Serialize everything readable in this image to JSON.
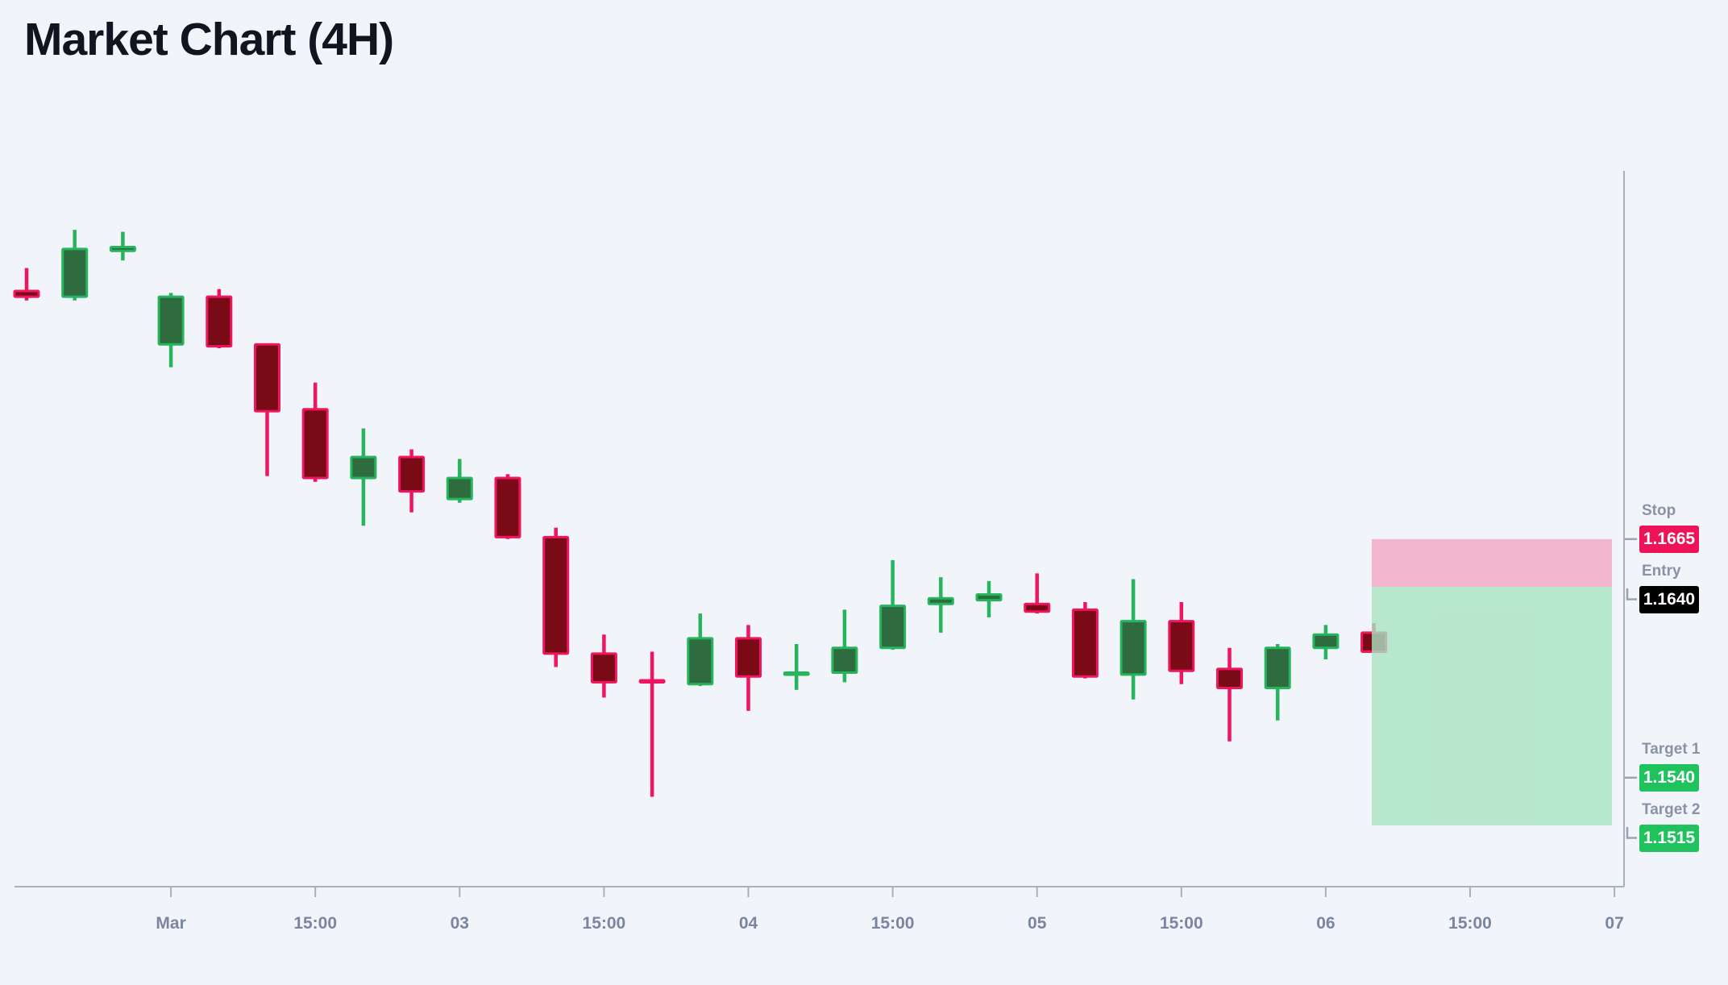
{
  "title": "Market Chart (4H)",
  "chart_data": {
    "type": "candlestick",
    "timeframe": "4H",
    "title": "Market Chart (4H)",
    "x_tick_labels": [
      "Mar",
      "15:00",
      "03",
      "15:00",
      "04",
      "15:00",
      "05",
      "15:00",
      "06",
      "15:00",
      "07"
    ],
    "y_range_approx": [
      1.1483,
      1.1858
    ],
    "candles": [
      {
        "o": 1.1795,
        "h": 1.1807,
        "l": 1.179,
        "c": 1.1792
      },
      {
        "o": 1.1792,
        "h": 1.1827,
        "l": 1.179,
        "c": 1.1817
      },
      {
        "o": 1.1816,
        "h": 1.1826,
        "l": 1.1811,
        "c": 1.1818
      },
      {
        "o": 1.1767,
        "h": 1.1794,
        "l": 1.1755,
        "c": 1.1792
      },
      {
        "o": 1.1792,
        "h": 1.1796,
        "l": 1.1765,
        "c": 1.1766
      },
      {
        "o": 1.1767,
        "h": 1.1767,
        "l": 1.1698,
        "c": 1.1732
      },
      {
        "o": 1.1733,
        "h": 1.1747,
        "l": 1.1695,
        "c": 1.1697
      },
      {
        "o": 1.1697,
        "h": 1.1723,
        "l": 1.1672,
        "c": 1.1708
      },
      {
        "o": 1.1708,
        "h": 1.1712,
        "l": 1.1679,
        "c": 1.169
      },
      {
        "o": 1.1686,
        "h": 1.1707,
        "l": 1.1684,
        "c": 1.1697
      },
      {
        "o": 1.1697,
        "h": 1.1699,
        "l": 1.1665,
        "c": 1.1666
      },
      {
        "o": 1.1666,
        "h": 1.1671,
        "l": 1.1598,
        "c": 1.1605
      },
      {
        "o": 1.1605,
        "h": 1.1615,
        "l": 1.1582,
        "c": 1.159
      },
      {
        "o": 1.1591,
        "h": 1.1606,
        "l": 1.153,
        "c": 1.159
      },
      {
        "o": 1.1589,
        "h": 1.1626,
        "l": 1.1588,
        "c": 1.1613
      },
      {
        "o": 1.1613,
        "h": 1.162,
        "l": 1.1575,
        "c": 1.1593
      },
      {
        "o": 1.1594,
        "h": 1.161,
        "l": 1.1586,
        "c": 1.1595
      },
      {
        "o": 1.1595,
        "h": 1.1628,
        "l": 1.159,
        "c": 1.1608
      },
      {
        "o": 1.1608,
        "h": 1.1654,
        "l": 1.1607,
        "c": 1.163
      },
      {
        "o": 1.1631,
        "h": 1.1645,
        "l": 1.1616,
        "c": 1.1634
      },
      {
        "o": 1.1633,
        "h": 1.1643,
        "l": 1.1624,
        "c": 1.1636
      },
      {
        "o": 1.1631,
        "h": 1.1647,
        "l": 1.1626,
        "c": 1.1627
      },
      {
        "o": 1.1628,
        "h": 1.1632,
        "l": 1.1592,
        "c": 1.1593
      },
      {
        "o": 1.1594,
        "h": 1.1644,
        "l": 1.1581,
        "c": 1.1622
      },
      {
        "o": 1.1622,
        "h": 1.1632,
        "l": 1.1589,
        "c": 1.1596
      },
      {
        "o": 1.1597,
        "h": 1.1608,
        "l": 1.1559,
        "c": 1.1587
      },
      {
        "o": 1.1587,
        "h": 1.161,
        "l": 1.157,
        "c": 1.1608
      },
      {
        "o": 1.1608,
        "h": 1.162,
        "l": 1.1602,
        "c": 1.1615
      },
      {
        "o": 1.1616,
        "h": 1.1621,
        "l": 1.1606,
        "c": 1.1606
      }
    ],
    "levels": [
      {
        "id": "stop",
        "label": "Stop",
        "price": "1.1665",
        "value": 1.1665,
        "badge_color": "#ee1258",
        "connector": "dash"
      },
      {
        "id": "entry",
        "label": "Entry",
        "price": "1.1640",
        "value": 1.164,
        "badge_color": "#000000",
        "connector": "elbow"
      },
      {
        "id": "target1",
        "label": "Target 1",
        "price": "1.1540",
        "value": 1.154,
        "badge_color": "#1fc25c",
        "connector": "dash"
      },
      {
        "id": "target2",
        "label": "Target 2",
        "price": "1.1515",
        "value": 1.1515,
        "badge_color": "#1fc25c",
        "connector": "elbow"
      }
    ],
    "zones": [
      {
        "id": "risk",
        "from": 1.1665,
        "to": 1.164,
        "color": "#f3a8c4"
      },
      {
        "id": "profit",
        "from": 1.164,
        "to": 1.1515,
        "color": "#a9e3c2"
      }
    ],
    "colors": {
      "background": "#f1f4f9",
      "up_border": "#26b45d",
      "up_fill": "#2e6b3e",
      "down_border": "#f0155f",
      "down_fill": "#7a0a15",
      "axis_line": "#a9b0bd",
      "tick_text": "#7b84a0",
      "level_label_text": "#8a92a6"
    }
  }
}
